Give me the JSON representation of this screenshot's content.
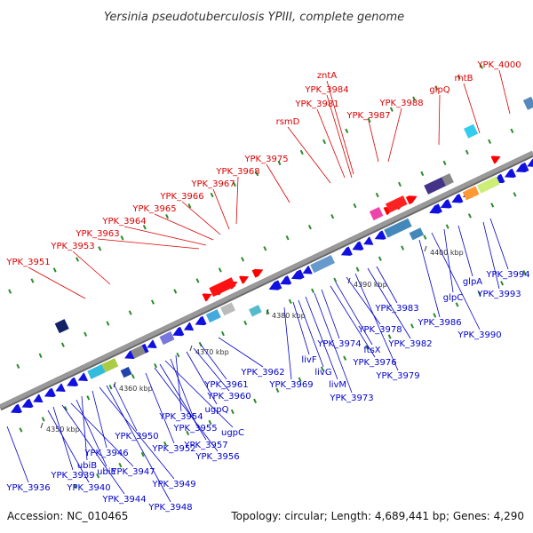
{
  "title": "Yersinia pseudotuberculosis YPIII, complete genome",
  "footer": {
    "accession": "Accession: NC_010465",
    "summary": "Topology: circular; Length: 4,689,441 bp; Genes: 4,290"
  },
  "colors": {
    "backbone": "#999999",
    "forward_label": "#dd0000",
    "reverse_label": "#0000cc",
    "forward_arrow": "#ff0000",
    "reverse_arrow": "#1010e0"
  },
  "ticks": [
    "4350 kbp",
    "4360 kbp",
    "4370 kbp",
    "4380 kbp",
    "4390 kbp",
    "4400 kbp"
  ],
  "forward_labels": [
    "YPK_4000",
    "rhtB",
    "glpQ",
    "YPK_3988",
    "YPK_3987",
    "zntA",
    "YPK_3984",
    "YPK_3981",
    "rsmD",
    "YPK_3975",
    "YPK_3968",
    "YPK_3967",
    "YPK_3966",
    "YPK_3965",
    "YPK_3964",
    "YPK_3963",
    "YPK_3953",
    "YPK_3951"
  ],
  "reverse_labels": [
    "YPK_3994",
    "YPK_3993",
    "glpA",
    "glpC",
    "YPK_3990",
    "YPK_3986",
    "YPK_3983",
    "YPK_3982",
    "YPK_3979",
    "YPK_3978",
    "ftsX",
    "YPK_3976",
    "YPK_3974",
    "YPK_3973",
    "livM",
    "livG",
    "livF",
    "YPK_3969",
    "YPK_3962",
    "YPK_3961",
    "YPK_3960",
    "ugpQ",
    "YPK_3954",
    "YPK_3955",
    "ugpC",
    "YPK_3957",
    "YPK_3956",
    "YPK_3952",
    "YPK_3950",
    "YPK_3946",
    "ubiB",
    "ubiE",
    "YPK_3947",
    "YPK_3939",
    "YPK_3940",
    "YPK_3949",
    "YPK_3944",
    "YPK_3948",
    "YPK_3936"
  ]
}
